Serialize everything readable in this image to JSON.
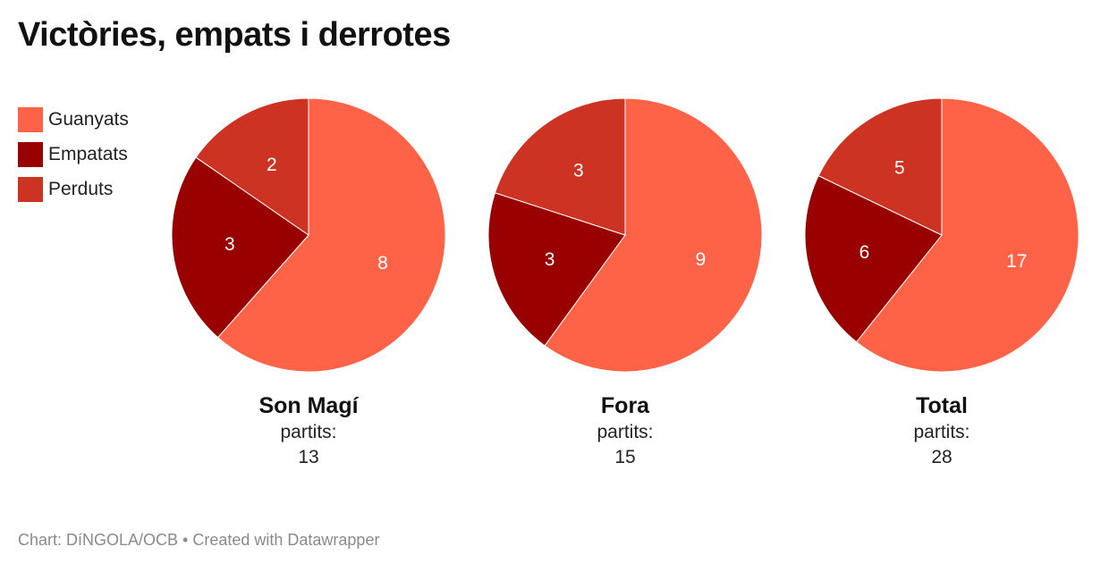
{
  "title": "Victòries, empats i derrotes",
  "legend": [
    {
      "label": "Guanyats",
      "color": "#ff6347"
    },
    {
      "label": "Empatats",
      "color": "#990000"
    },
    {
      "label": "Perduts",
      "color": "#cc3322"
    }
  ],
  "chart_data": {
    "type": "pie",
    "title": "Victòries, empats i derrotes",
    "categories": [
      "Guanyats",
      "Empatats",
      "Perduts"
    ],
    "colors": [
      "#ff6347",
      "#990000",
      "#cc3322"
    ],
    "legend_position": "top-left",
    "pies": [
      {
        "name": "Son Magí",
        "total_label": "partits:",
        "total": "13",
        "values": [
          8,
          3,
          2
        ]
      },
      {
        "name": "Fora",
        "total_label": "partits:",
        "total": "15",
        "values": [
          9,
          3,
          3
        ]
      },
      {
        "name": "Total",
        "total_label": "partits:",
        "total": "28",
        "values": [
          17,
          6,
          5
        ]
      }
    ]
  },
  "footer": {
    "text": "Chart: DíNGOLA/OCB • Created with Datawrapper"
  }
}
